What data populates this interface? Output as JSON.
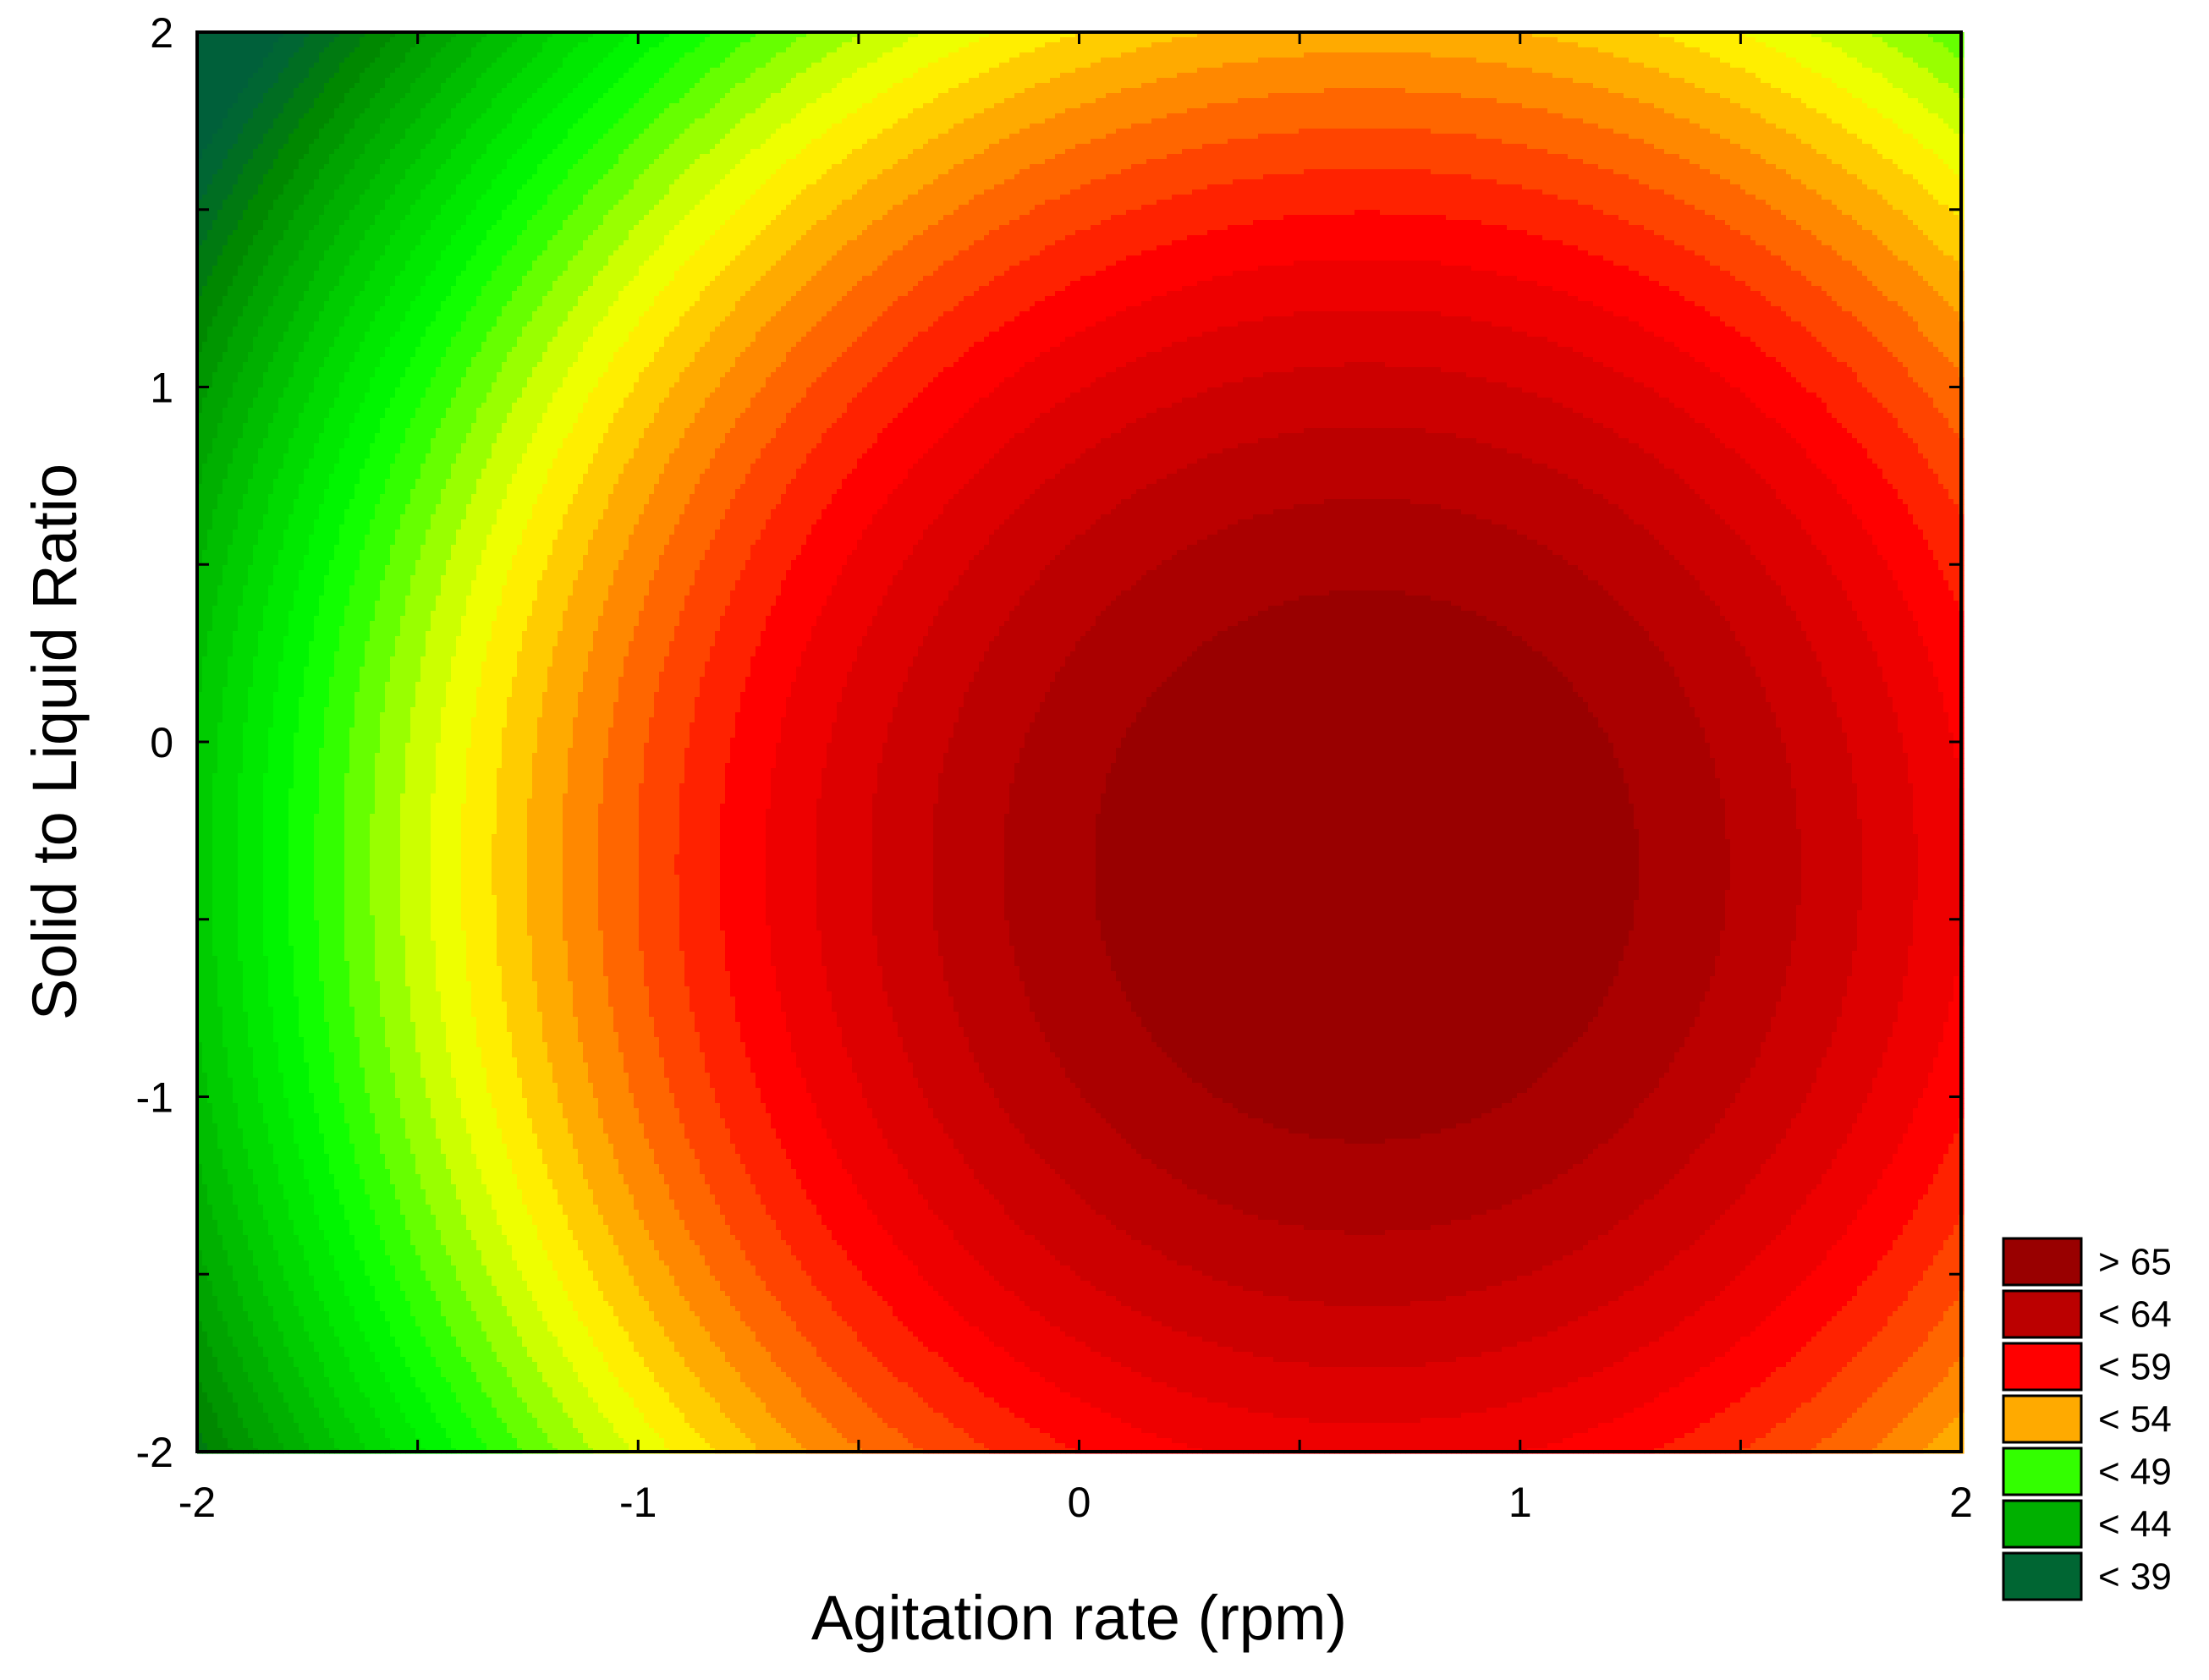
{
  "chart_data": {
    "type": "contour",
    "title": "",
    "xlabel": "Agitation rate (rpm)",
    "ylabel": "Solid to Liquid Ratio",
    "xlim": [
      -2,
      2
    ],
    "ylim": [
      -2,
      2
    ],
    "xticks": [
      -2,
      -1,
      0,
      1,
      2
    ],
    "yticks": [
      -2,
      -1,
      0,
      1,
      2
    ],
    "grid": false,
    "legend_position": "bottom-right",
    "optimum": {
      "x": 0.65,
      "y": -0.35,
      "z": 66.3
    },
    "legend": [
      {
        "label": "> 65",
        "color": "#990000"
      },
      {
        "label": "< 64",
        "color": "#BB0000"
      },
      {
        "label": "< 59",
        "color": "#FF0000"
      },
      {
        "label": "< 54",
        "color": "#FFAA00"
      },
      {
        "label": "< 49",
        "color": "#33FF00"
      },
      {
        "label": "< 44",
        "color": "#00B000"
      },
      {
        "label": "< 39",
        "color": "#006633"
      }
    ],
    "contour_levels": [
      {
        "upper": 34,
        "color": "#00603A"
      },
      {
        "upper": 35,
        "color": "#006633"
      },
      {
        "upper": 36,
        "color": "#006E22"
      },
      {
        "upper": 37,
        "color": "#007A11"
      },
      {
        "upper": 38,
        "color": "#008800"
      },
      {
        "upper": 39,
        "color": "#009600"
      },
      {
        "upper": 40,
        "color": "#00A400"
      },
      {
        "upper": 41,
        "color": "#00B000"
      },
      {
        "upper": 42,
        "color": "#00BE00"
      },
      {
        "upper": 43,
        "color": "#00CC00"
      },
      {
        "upper": 44,
        "color": "#00DA00"
      },
      {
        "upper": 45,
        "color": "#00E800"
      },
      {
        "upper": 46,
        "color": "#00F500"
      },
      {
        "upper": 47,
        "color": "#11FF00"
      },
      {
        "upper": 48,
        "color": "#33FF00"
      },
      {
        "upper": 49,
        "color": "#66FF00"
      },
      {
        "upper": 50,
        "color": "#99FF00"
      },
      {
        "upper": 51,
        "color": "#CCFF00"
      },
      {
        "upper": 52,
        "color": "#EEFF00"
      },
      {
        "upper": 53,
        "color": "#FFEE00"
      },
      {
        "upper": 54,
        "color": "#FFCC00"
      },
      {
        "upper": 55,
        "color": "#FFAA00"
      },
      {
        "upper": 56,
        "color": "#FF8800"
      },
      {
        "upper": 57,
        "color": "#FF6600"
      },
      {
        "upper": 58,
        "color": "#FF4400"
      },
      {
        "upper": 59,
        "color": "#FF2200"
      },
      {
        "upper": 60,
        "color": "#FF0000"
      },
      {
        "upper": 61,
        "color": "#EE0000"
      },
      {
        "upper": 62,
        "color": "#DD0000"
      },
      {
        "upper": 63,
        "color": "#CC0000"
      },
      {
        "upper": 64,
        "color": "#BB0000"
      },
      {
        "upper": 65,
        "color": "#AA0000"
      },
      {
        "upper": 99,
        "color": "#990000"
      }
    ]
  }
}
